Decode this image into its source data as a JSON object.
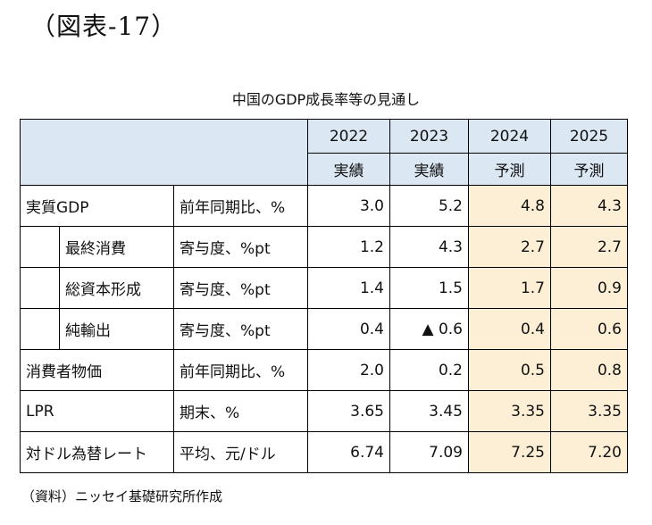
{
  "figure_label": "（図表-17）",
  "caption": "中国のGDP成長率等の見通し",
  "header": {
    "years": [
      "2022",
      "2023",
      "2024",
      "2025"
    ],
    "kinds": [
      "実績",
      "実績",
      "予測",
      "予測"
    ]
  },
  "rows": [
    {
      "name": "実質GDP",
      "unit": "前年同期比、%",
      "values": [
        "3.0",
        "5.2",
        "4.8",
        "4.3"
      ]
    },
    {
      "name": "最終消費",
      "unit": "寄与度、%pt",
      "values": [
        "1.2",
        "4.3",
        "2.7",
        "2.7"
      ]
    },
    {
      "name": "総資本形成",
      "unit": "寄与度、%pt",
      "values": [
        "1.4",
        "1.5",
        "1.7",
        "0.9"
      ]
    },
    {
      "name": "純輸出",
      "unit": "寄与度、%pt",
      "values": [
        "0.4",
        "▲ 0.6",
        "0.4",
        "0.6"
      ]
    },
    {
      "name": "消費者物価",
      "unit": "前年同期比、%",
      "values": [
        "2.0",
        "0.2",
        "0.5",
        "0.8"
      ]
    },
    {
      "name": "LPR",
      "unit": "期末、%",
      "values": [
        "3.65",
        "3.45",
        "3.35",
        "3.35"
      ]
    },
    {
      "name": "対ドル為替レート",
      "unit": "平均、元/ドル",
      "values": [
        "6.74",
        "7.09",
        "7.25",
        "7.20"
      ]
    }
  ],
  "source": "（資料）ニッセイ基礎研究所作成",
  "colors": {
    "header_bg": "#dbe7f3",
    "forecast_bg": "#fdefd5"
  }
}
